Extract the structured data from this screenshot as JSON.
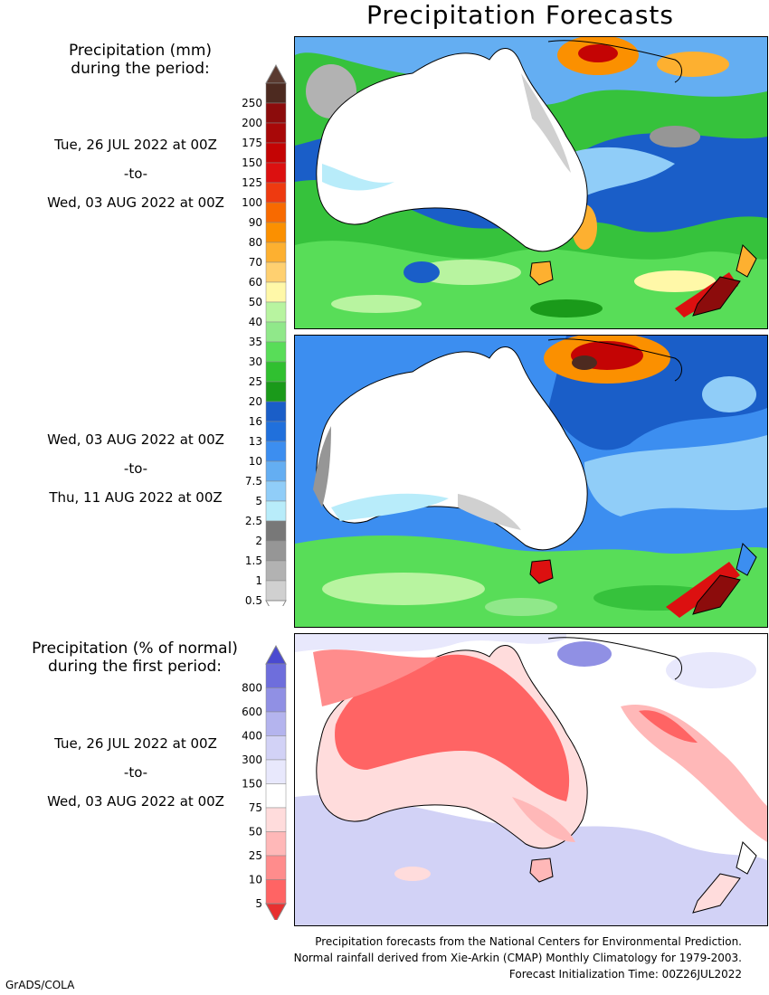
{
  "title": "Precipitation Forecasts",
  "amount_legend": {
    "heading_line1": "Precipitation (mm)",
    "heading_line2": "during the period:",
    "labels": [
      "250",
      "200",
      "175",
      "150",
      "125",
      "100",
      "90",
      "80",
      "70",
      "60",
      "50",
      "40",
      "35",
      "30",
      "25",
      "20",
      "16",
      "13",
      "10",
      "7.5",
      "5",
      "2.5",
      "2",
      "1.5",
      "1",
      "0.5"
    ],
    "colors": [
      "#4d2a20",
      "#8c0c0c",
      "#a80808",
      "#c40404",
      "#dc1010",
      "#ee3a10",
      "#f86a00",
      "#fb9000",
      "#fdb030",
      "#ffd070",
      "#fff8a8",
      "#b8f4a0",
      "#90e88a",
      "#58dd58",
      "#30c030",
      "#1a9a1a",
      "#1a5ec8",
      "#2070dc",
      "#3c8ef0",
      "#64aef2",
      "#90cdf8",
      "#b8ecfa",
      "#787878",
      "#969696",
      "#b2b2b2",
      "#d0d0d0"
    ],
    "top_cap_color": "#5a3a30",
    "bottom_cap_color": "#ffffff"
  },
  "percent_legend": {
    "heading_line1": "Precipitation (% of normal)",
    "heading_line2": "during the first period:",
    "labels": [
      "800",
      "600",
      "400",
      "300",
      "150",
      "75",
      "50",
      "25",
      "10",
      "5"
    ],
    "colors": [
      "#6e6edc",
      "#9090e4",
      "#b4b4ee",
      "#d2d2f6",
      "#e8e8fc",
      "#ffffff",
      "#ffdcdc",
      "#ffb8b8",
      "#ff8c8c",
      "#ff6464"
    ],
    "top_cap_color": "#4a4ad0",
    "bottom_cap_color": "#e83030"
  },
  "periods": [
    {
      "start": "Tue, 26 JUL 2022 at 00Z",
      "sep": "-to-",
      "end": "Wed, 03 AUG 2022 at 00Z"
    },
    {
      "start": "Wed, 03 AUG 2022 at 00Z",
      "sep": "-to-",
      "end": "Thu, 11 AUG 2022 at 00Z"
    },
    {
      "start": "Tue, 26 JUL 2022 at 00Z",
      "sep": "-to-",
      "end": "Wed, 03 AUG 2022 at 00Z"
    }
  ],
  "footer": {
    "line1": "Precipitation forecasts from the National Centers for Environmental Prediction.",
    "line2": "Normal rainfall derived from Xie-Arkin (CMAP) Monthly Climatology for 1979-2003.",
    "line3": "Forecast Initialization Time: 00Z26JUL2022"
  },
  "credit": "GrADS/COLA"
}
